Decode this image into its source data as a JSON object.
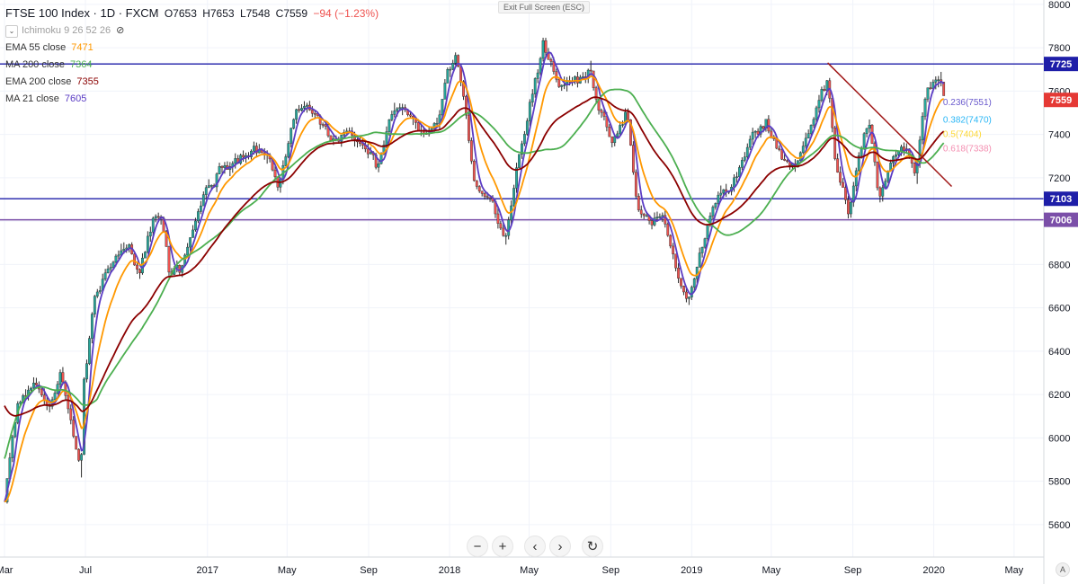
{
  "header": {
    "symbol": "FTSE 100 Index · 1D · FXCM",
    "open": "O7653",
    "high": "H7653",
    "low": "L7548",
    "close": "C7559",
    "change": "−94 (−1.23%)",
    "change_color": "#ef5350"
  },
  "indicators": [
    {
      "label": "Ichimoku 9 26 52 26",
      "value": "",
      "color": "#9e9e9e",
      "hidden": true
    },
    {
      "label": "EMA 55 close",
      "value": "7471",
      "color": "#ff9800"
    },
    {
      "label": "MA 200 close",
      "value": "7364",
      "color": "#4caf50"
    },
    {
      "label": "EMA 200 close",
      "value": "7355",
      "color": "#8b0000"
    },
    {
      "label": "MA 21 close",
      "value": "7605",
      "color": "#5b3cc4"
    }
  ],
  "exit_full_screen_label": "Exit Full Screen (ESC)",
  "toolbar": {
    "zoom_out": "−",
    "zoom_in": "+",
    "scroll_left": "‹",
    "scroll_right": "›",
    "reset": "↻"
  },
  "auto_label": "A",
  "chart_data": {
    "type": "candlestick",
    "x_range": [
      "2016-03-01",
      "2020-05-31"
    ],
    "ylim": [
      5450,
      8020
    ],
    "y_ticks": [
      5600,
      5800,
      6000,
      6200,
      6400,
      6600,
      6800,
      7000,
      7200,
      7400,
      7600,
      7800,
      8000
    ],
    "x_ticks": [
      {
        "label": "Mar",
        "date": "2016-03-01"
      },
      {
        "label": "Jul",
        "date": "2016-07-01"
      },
      {
        "label": "2017",
        "date": "2017-01-01"
      },
      {
        "label": "May",
        "date": "2017-05-01"
      },
      {
        "label": "Sep",
        "date": "2017-09-01"
      },
      {
        "label": "2018",
        "date": "2018-01-01"
      },
      {
        "label": "May",
        "date": "2018-05-01"
      },
      {
        "label": "Sep",
        "date": "2018-09-01"
      },
      {
        "label": "2019",
        "date": "2019-01-01"
      },
      {
        "label": "May",
        "date": "2019-05-01"
      },
      {
        "label": "Sep",
        "date": "2019-09-01"
      },
      {
        "label": "2020",
        "date": "2020-01-01"
      },
      {
        "label": "May",
        "date": "2020-05-01"
      }
    ],
    "price_path": [
      [
        "2016-03-01",
        5700
      ],
      [
        "2016-03-20",
        6150
      ],
      [
        "2016-04-15",
        6250
      ],
      [
        "2016-05-10",
        6150
      ],
      [
        "2016-05-25",
        6300
      ],
      [
        "2016-06-10",
        6050
      ],
      [
        "2016-06-24",
        5850
      ],
      [
        "2016-06-29",
        6250
      ],
      [
        "2016-07-15",
        6650
      ],
      [
        "2016-08-15",
        6850
      ],
      [
        "2016-09-05",
        6880
      ],
      [
        "2016-09-20",
        6750
      ],
      [
        "2016-10-10",
        7000
      ],
      [
        "2016-10-25",
        7000
      ],
      [
        "2016-11-05",
        6750
      ],
      [
        "2016-11-20",
        6780
      ],
      [
        "2016-12-10",
        6960
      ],
      [
        "2016-12-30",
        7140
      ],
      [
        "2017-01-20",
        7220
      ],
      [
        "2017-02-15",
        7280
      ],
      [
        "2017-03-10",
        7350
      ],
      [
        "2017-04-01",
        7320
      ],
      [
        "2017-04-18",
        7150
      ],
      [
        "2017-05-10",
        7450
      ],
      [
        "2017-05-28",
        7550
      ],
      [
        "2017-06-20",
        7450
      ],
      [
        "2017-07-10",
        7380
      ],
      [
        "2017-07-30",
        7420
      ],
      [
        "2017-08-20",
        7350
      ],
      [
        "2017-09-15",
        7250
      ],
      [
        "2017-10-05",
        7500
      ],
      [
        "2017-10-25",
        7500
      ],
      [
        "2017-11-20",
        7400
      ],
      [
        "2017-12-15",
        7450
      ],
      [
        "2017-12-29",
        7690
      ],
      [
        "2018-01-12",
        7760
      ],
      [
        "2018-02-08",
        7180
      ],
      [
        "2018-03-05",
        7100
      ],
      [
        "2018-03-26",
        6920
      ],
      [
        "2018-04-20",
        7380
      ],
      [
        "2018-05-22",
        7820
      ],
      [
        "2018-06-15",
        7630
      ],
      [
        "2018-06-29",
        7630
      ],
      [
        "2018-07-20",
        7670
      ],
      [
        "2018-08-01",
        7720
      ],
      [
        "2018-08-15",
        7500
      ],
      [
        "2018-09-05",
        7350
      ],
      [
        "2018-09-25",
        7500
      ],
      [
        "2018-10-12",
        7050
      ],
      [
        "2018-10-30",
        7000
      ],
      [
        "2018-11-20",
        7020
      ],
      [
        "2018-12-10",
        6750
      ],
      [
        "2018-12-27",
        6620
      ],
      [
        "2019-01-15",
        6880
      ],
      [
        "2019-02-05",
        7100
      ],
      [
        "2019-03-01",
        7150
      ],
      [
        "2019-04-05",
        7400
      ],
      [
        "2019-04-25",
        7460
      ],
      [
        "2019-05-15",
        7300
      ],
      [
        "2019-06-05",
        7250
      ],
      [
        "2019-06-30",
        7430
      ],
      [
        "2019-07-25",
        7680
      ],
      [
        "2019-08-05",
        7300
      ],
      [
        "2019-08-25",
        7050
      ],
      [
        "2019-09-10",
        7300
      ],
      [
        "2019-09-25",
        7450
      ],
      [
        "2019-10-10",
        7100
      ],
      [
        "2019-10-30",
        7300
      ],
      [
        "2019-11-20",
        7350
      ],
      [
        "2019-12-05",
        7200
      ],
      [
        "2019-12-20",
        7600
      ],
      [
        "2020-01-03",
        7620
      ],
      [
        "2020-01-10",
        7650
      ],
      [
        "2020-01-17",
        7559
      ]
    ],
    "candle_interval_days": 4,
    "moving_averages": [
      {
        "label": "MA 21 close",
        "color": "#5b3cc4",
        "period_days": 21
      },
      {
        "label": "EMA 55 close",
        "color": "#ff9800",
        "period_days": 55
      },
      {
        "label": "MA 200 close",
        "color": "#4caf50",
        "period_days": 200
      },
      {
        "label": "EMA 200 close",
        "color": "#8b0000",
        "period_days": 200
      }
    ],
    "horizontal_lines": [
      {
        "value": 7725,
        "label": "7725",
        "color": "#1e1ea8"
      },
      {
        "value": 7103,
        "label": "7103",
        "color": "#1e1ea8"
      },
      {
        "value": 7006,
        "label": "7006",
        "color": "#7b4fa8"
      }
    ],
    "trend_line": {
      "from": [
        "2019-07-25",
        7730
      ],
      "to": [
        "2020-01-28",
        7160
      ],
      "color": "#a01818"
    },
    "last_price": {
      "value": 7559,
      "label": "7559",
      "color": "#e53935"
    },
    "fib_labels": [
      {
        "text": "0.236(7551)",
        "value": 7551,
        "color": "#6a5acd"
      },
      {
        "text": "0.382(7470)",
        "value": 7470,
        "color": "#29b6f6"
      },
      {
        "text": "0.5(7404)",
        "value": 7404,
        "color": "#fdd835"
      },
      {
        "text": "0.618(7338)",
        "value": 7338,
        "color": "#f48fb1"
      }
    ]
  }
}
